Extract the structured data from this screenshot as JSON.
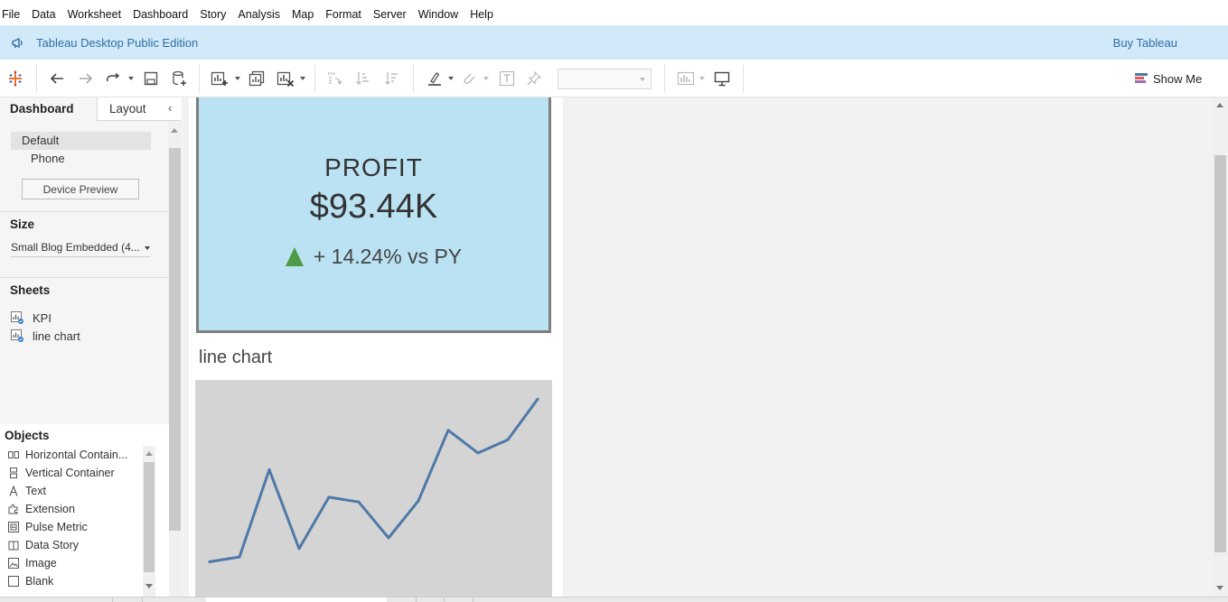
{
  "menu": [
    "File",
    "Data",
    "Worksheet",
    "Dashboard",
    "Story",
    "Analysis",
    "Map",
    "Format",
    "Server",
    "Window",
    "Help"
  ],
  "banner": {
    "title": "Tableau Desktop Public Edition",
    "buy_label": "Buy Tableau",
    "accent": "#2c6fa6",
    "background": "#d2e9f9"
  },
  "toolbar": {
    "icons": [
      "tableau-logo-icon",
      "undo-icon",
      "redo-icon",
      "replay-icon",
      "save-icon",
      "new-datasource-icon",
      "new-sheet-icon",
      "duplicate-sheet-icon",
      "clear-sheet-icon",
      "swap-icon",
      "sort-ascending-icon",
      "sort-descending-icon",
      "highlight-icon",
      "group-icon",
      "label-icon",
      "pin-icon",
      "fit-dropdown",
      "show-cards-icon",
      "presentation-icon"
    ],
    "fit_value": "",
    "show_me_label": "Show Me"
  },
  "left_panel": {
    "tabs": {
      "dashboard": "Dashboard",
      "layout": "Layout"
    },
    "devices": {
      "default": "Default",
      "phone": "Phone",
      "preview_button": "Device Preview"
    },
    "size": {
      "heading": "Size",
      "value": "Small Blog Embedded (4..."
    },
    "sheets": {
      "heading": "Sheets",
      "items": [
        "KPI",
        "line chart"
      ]
    },
    "objects": {
      "heading": "Objects",
      "items": [
        "Horizontal Contain...",
        "Vertical Container",
        "Text",
        "Extension",
        "Pulse Metric",
        "Data Story",
        "Image",
        "Blank"
      ]
    }
  },
  "kpi": {
    "label": "PROFIT",
    "value": "$93.44K",
    "delta": "+ 14.24% vs PY",
    "background": "#bae2f2",
    "up_color": "#4e9a46"
  },
  "line_chart": {
    "title": "line chart"
  },
  "chart_data": {
    "type": "line",
    "title": "line chart",
    "xlabel": "",
    "ylabel": "",
    "x": [
      1,
      2,
      3,
      4,
      5,
      6,
      7,
      8,
      9,
      10,
      11,
      12
    ],
    "series": [
      {
        "values": [
          14,
          18,
          91,
          25,
          68,
          64,
          34,
          65,
          124,
          105,
          116,
          150
        ]
      }
    ],
    "ylim": [
      0,
      160
    ],
    "grid": false,
    "line_color": "#4e79a7",
    "background": "#d4d4d4"
  }
}
